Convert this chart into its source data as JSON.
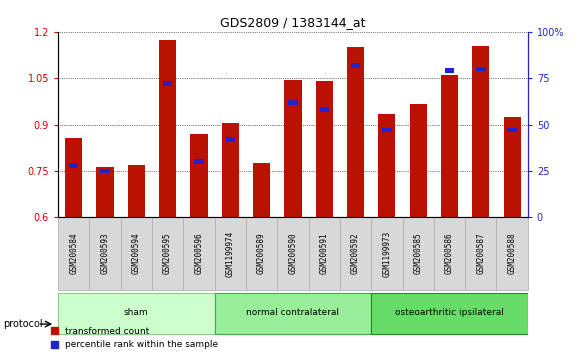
{
  "title": "GDS2809 / 1383144_at",
  "samples": [
    "GSM200584",
    "GSM200593",
    "GSM200594",
    "GSM200595",
    "GSM200596",
    "GSM1199974",
    "GSM200589",
    "GSM200590",
    "GSM200591",
    "GSM200592",
    "GSM1199973",
    "GSM200585",
    "GSM200586",
    "GSM200587",
    "GSM200588"
  ],
  "red_values": [
    0.855,
    0.762,
    0.768,
    1.175,
    0.87,
    0.905,
    0.776,
    1.045,
    1.04,
    1.15,
    0.935,
    0.965,
    1.06,
    1.155,
    0.925
  ],
  "blue_pcts": [
    28,
    25,
    0,
    72,
    30,
    42,
    0,
    62,
    58,
    82,
    47,
    0,
    79,
    80,
    47
  ],
  "ylim_left": [
    0.6,
    1.2
  ],
  "ylim_right": [
    0,
    100
  ],
  "yticks_left": [
    0.6,
    0.75,
    0.9,
    1.05,
    1.2
  ],
  "yticks_right": [
    0,
    25,
    50,
    75,
    100
  ],
  "left_tick_labels": [
    "0.6",
    "0.75",
    "0.9",
    "1.05",
    "1.2"
  ],
  "right_tick_labels": [
    "0",
    "25",
    "50",
    "75",
    "100%"
  ],
  "groups": [
    {
      "label": "sham",
      "start": 0,
      "end": 5,
      "color": "#ccffcc",
      "edgecolor": "#88cc88"
    },
    {
      "label": "normal contralateral",
      "start": 5,
      "end": 10,
      "color": "#99ee99",
      "edgecolor": "#44aa44"
    },
    {
      "label": "osteoarthritic ipsilateral",
      "start": 10,
      "end": 15,
      "color": "#66dd66",
      "edgecolor": "#228822"
    }
  ],
  "bar_width": 0.55,
  "blue_bar_width": 0.3,
  "red_color": "#bb1100",
  "blue_color": "#2222cc",
  "legend_items": [
    {
      "label": "transformed count",
      "color": "#bb1100"
    },
    {
      "label": "percentile rank within the sample",
      "color": "#2222cc"
    }
  ],
  "base": 0.6,
  "protocol_label": "protocol"
}
